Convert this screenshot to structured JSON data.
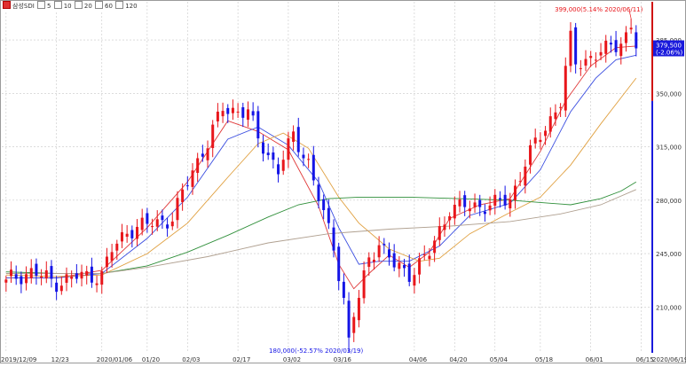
{
  "legend": {
    "symbol": "삼성SDI",
    "ma_labels": [
      "5",
      "10",
      "20",
      "60",
      "120"
    ],
    "ma_colors": [
      "#e03a3a",
      "#3a4de0",
      "#e0a040",
      "#2f8f3a",
      "#b0a090"
    ]
  },
  "colors": {
    "up": "#e8161b",
    "down": "#1414e6",
    "grid": "#c8c8c8",
    "axis_bar": "#1a1adc",
    "current_box": "#1a1adc",
    "axis_red": "#d01010"
  },
  "chart_data": {
    "type": "candlestick",
    "title": "",
    "ylim": [
      180000,
      410000
    ],
    "yticks": [
      210000,
      245000,
      280000,
      315000,
      350000,
      385000
    ],
    "ytick_labels": [
      "210,000",
      "245,000",
      "280,000",
      "315,000",
      "350,000",
      "385,000"
    ],
    "xtick_labels": [
      {
        "index": 0,
        "label": "2019/12/09"
      },
      {
        "index": 10,
        "label": "12/23"
      },
      {
        "index": 19,
        "label": "2020/01/06"
      },
      {
        "index": 28,
        "label": "01/20"
      },
      {
        "index": 36,
        "label": "02/03"
      },
      {
        "index": 46,
        "label": "02/17"
      },
      {
        "index": 56,
        "label": "03/02"
      },
      {
        "index": 66,
        "label": "03/16"
      },
      {
        "index": 81,
        "label": "04/06"
      },
      {
        "index": 89,
        "label": "04/20"
      },
      {
        "index": 97,
        "label": "05/04"
      },
      {
        "index": 106,
        "label": "05/18"
      },
      {
        "index": 116,
        "label": "06/01"
      },
      {
        "index": 126,
        "label": "06/15"
      }
    ],
    "end_label": "2020/06/19",
    "max_annotation": {
      "index": 124,
      "value": 399000,
      "text": "399,000(5.14% 2020/06/11)"
    },
    "min_annotation": {
      "index": 68,
      "value": 180000,
      "text": "180,000(-52.57% 2020/03/19)"
    },
    "current": {
      "price": "379,500",
      "change": "(-2.06%)",
      "value": 379500
    },
    "anchors": [
      [
        0,
        228000
      ],
      [
        5,
        233000
      ],
      [
        10,
        226000
      ],
      [
        14,
        230000
      ],
      [
        19,
        231000
      ],
      [
        21,
        247000
      ],
      [
        24,
        260000
      ],
      [
        29,
        265000
      ],
      [
        33,
        268000
      ],
      [
        37,
        300000
      ],
      [
        40,
        318000
      ],
      [
        43,
        340000
      ],
      [
        48,
        338000
      ],
      [
        50,
        320000
      ],
      [
        54,
        300000
      ],
      [
        57,
        322000
      ],
      [
        60,
        305000
      ],
      [
        63,
        270000
      ],
      [
        65,
        250000
      ],
      [
        67,
        215000
      ],
      [
        68,
        195000
      ],
      [
        70,
        215000
      ],
      [
        72,
        243000
      ],
      [
        74,
        252000
      ],
      [
        77,
        237000
      ],
      [
        80,
        232000
      ],
      [
        84,
        245000
      ],
      [
        88,
        275000
      ],
      [
        92,
        276000
      ],
      [
        96,
        277000
      ],
      [
        100,
        280000
      ],
      [
        103,
        305000
      ],
      [
        107,
        328000
      ],
      [
        110,
        345000
      ],
      [
        112,
        385000
      ],
      [
        113,
        370000
      ],
      [
        117,
        375000
      ],
      [
        121,
        382000
      ],
      [
        123,
        388000
      ],
      [
        124,
        394000
      ],
      [
        125,
        379500
      ]
    ],
    "ma_series": [
      {
        "name": "5",
        "points": [
          [
            0,
            229000
          ],
          [
            10,
            229000
          ],
          [
            19,
            234000
          ],
          [
            28,
            262000
          ],
          [
            36,
            292000
          ],
          [
            44,
            332000
          ],
          [
            50,
            325000
          ],
          [
            56,
            313000
          ],
          [
            62,
            276000
          ],
          [
            66,
            238000
          ],
          [
            69,
            222000
          ],
          [
            72,
            232000
          ],
          [
            76,
            244000
          ],
          [
            80,
            236000
          ],
          [
            84,
            246000
          ],
          [
            88,
            268000
          ],
          [
            94,
            277000
          ],
          [
            100,
            281000
          ],
          [
            106,
            312000
          ],
          [
            111,
            345000
          ],
          [
            116,
            368000
          ],
          [
            121,
            380000
          ],
          [
            125,
            381000
          ]
        ]
      },
      {
        "name": "10",
        "points": [
          [
            0,
            229000
          ],
          [
            10,
            229000
          ],
          [
            19,
            232000
          ],
          [
            28,
            255000
          ],
          [
            36,
            282000
          ],
          [
            44,
            320000
          ],
          [
            50,
            328000
          ],
          [
            56,
            316000
          ],
          [
            62,
            292000
          ],
          [
            66,
            262000
          ],
          [
            70,
            238000
          ],
          [
            74,
            240000
          ],
          [
            80,
            240000
          ],
          [
            86,
            250000
          ],
          [
            92,
            270000
          ],
          [
            100,
            278000
          ],
          [
            106,
            300000
          ],
          [
            112,
            338000
          ],
          [
            117,
            360000
          ],
          [
            121,
            372000
          ],
          [
            125,
            375000
          ]
        ]
      },
      {
        "name": "20",
        "points": [
          [
            0,
            231000
          ],
          [
            10,
            230000
          ],
          [
            19,
            231000
          ],
          [
            28,
            245000
          ],
          [
            36,
            265000
          ],
          [
            44,
            295000
          ],
          [
            50,
            317000
          ],
          [
            55,
            324000
          ],
          [
            60,
            314000
          ],
          [
            66,
            282000
          ],
          [
            70,
            265000
          ],
          [
            76,
            248000
          ],
          [
            82,
            240000
          ],
          [
            86,
            242000
          ],
          [
            92,
            258000
          ],
          [
            100,
            272000
          ],
          [
            106,
            282000
          ],
          [
            112,
            303000
          ],
          [
            118,
            330000
          ],
          [
            125,
            360000
          ]
        ]
      },
      {
        "name": "60",
        "points": [
          [
            0,
            233000
          ],
          [
            10,
            232000
          ],
          [
            19,
            232000
          ],
          [
            28,
            237000
          ],
          [
            36,
            246000
          ],
          [
            44,
            257000
          ],
          [
            52,
            269000
          ],
          [
            58,
            277000
          ],
          [
            64,
            281000
          ],
          [
            70,
            282000
          ],
          [
            80,
            282000
          ],
          [
            90,
            281000
          ],
          [
            100,
            280000
          ],
          [
            108,
            278000
          ],
          [
            112,
            277000
          ],
          [
            118,
            281000
          ],
          [
            122,
            286000
          ],
          [
            125,
            292000
          ]
        ]
      },
      {
        "name": "120",
        "points": [
          [
            0,
            232000
          ],
          [
            19,
            232000
          ],
          [
            28,
            236000
          ],
          [
            40,
            243000
          ],
          [
            52,
            252000
          ],
          [
            64,
            258000
          ],
          [
            76,
            261000
          ],
          [
            88,
            263000
          ],
          [
            100,
            266000
          ],
          [
            110,
            271000
          ],
          [
            118,
            277000
          ],
          [
            125,
            287000
          ]
        ]
      }
    ]
  }
}
